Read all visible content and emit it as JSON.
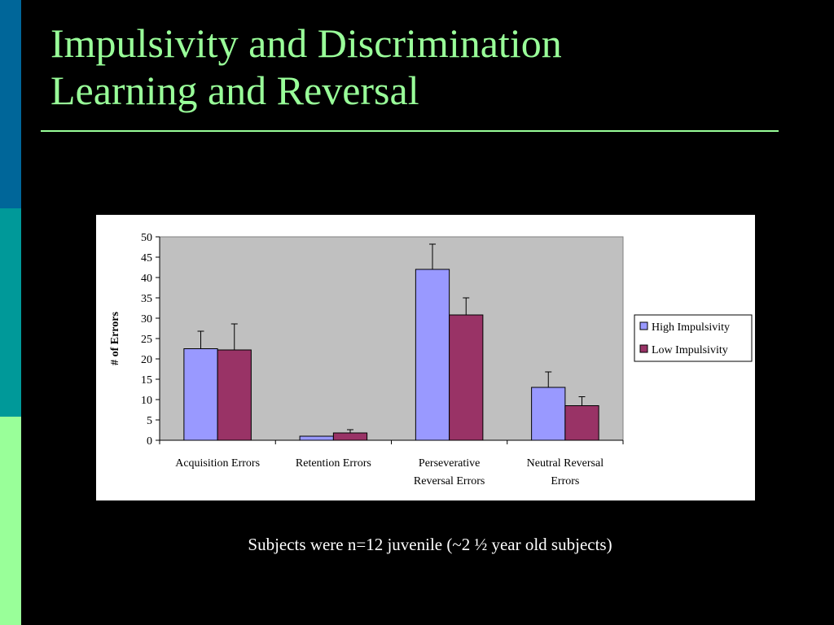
{
  "slide": {
    "title_lines": [
      "Impulsivity and Discrimination",
      "Learning and Reversal"
    ],
    "caption": "Subjects were n=12 juvenile (~2 ½ year old subjects)",
    "colors": {
      "title": "#99ff99",
      "rule": "#99ff99",
      "stripe_top": "#006699",
      "stripe_mid": "#009999",
      "stripe_bottom": "#99ff99"
    }
  },
  "chart_data": {
    "type": "bar",
    "title": "",
    "xlabel": "",
    "ylabel": "# of Errors",
    "ylim": [
      0,
      50
    ],
    "yticks": [
      0,
      5,
      10,
      15,
      20,
      25,
      30,
      35,
      40,
      45,
      50
    ],
    "grid": false,
    "plot_background": "#c0c0c0",
    "legend_position": "right",
    "categories": [
      [
        "Acquisition Errors"
      ],
      [
        "Retention Errors"
      ],
      [
        "Perseverative",
        "Reversal Errors"
      ],
      [
        "Neutral Reversal",
        "Errors"
      ]
    ],
    "series": [
      {
        "name": "High Impulsivity",
        "color": "#9999ff",
        "values": [
          22.5,
          1,
          42,
          13
        ],
        "errors": [
          4.3,
          0,
          6.2,
          3.8
        ]
      },
      {
        "name": "Low Impulsivity",
        "color": "#993366",
        "values": [
          22.2,
          1.8,
          30.8,
          8.5
        ],
        "errors": [
          6.4,
          0.8,
          4.2,
          2.2
        ]
      }
    ]
  }
}
